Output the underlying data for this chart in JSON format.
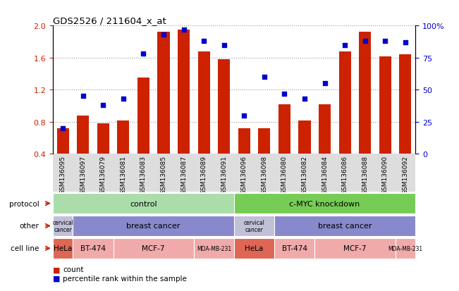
{
  "title": "GDS2526 / 211604_x_at",
  "samples": [
    "GSM136095",
    "GSM136097",
    "GSM136079",
    "GSM136081",
    "GSM136083",
    "GSM136085",
    "GSM136087",
    "GSM136089",
    "GSM136091",
    "GSM136096",
    "GSM136098",
    "GSM136080",
    "GSM136082",
    "GSM136084",
    "GSM136086",
    "GSM136088",
    "GSM136090",
    "GSM136092"
  ],
  "bar_values": [
    0.72,
    0.88,
    0.78,
    0.82,
    1.35,
    1.92,
    1.95,
    1.68,
    1.58,
    0.72,
    0.72,
    1.02,
    0.82,
    1.02,
    1.68,
    1.92,
    1.62,
    1.64
  ],
  "dot_values": [
    20,
    45,
    38,
    43,
    78,
    93,
    97,
    88,
    85,
    30,
    60,
    47,
    43,
    55,
    85,
    88,
    88,
    87
  ],
  "bar_color": "#cc2200",
  "dot_color": "#0000cc",
  "ylim_left": [
    0.4,
    2.0
  ],
  "ylim_right": [
    0,
    100
  ],
  "yticks_left": [
    0.4,
    0.8,
    1.2,
    1.6,
    2.0
  ],
  "yticks_right": [
    0,
    25,
    50,
    75,
    100
  ],
  "ytick_labels_right": [
    "0",
    "25",
    "50",
    "75",
    "100%"
  ],
  "protocol_control_color": "#aaddaa",
  "protocol_knockdown_color": "#77cc55",
  "protocol_control_label": "control",
  "protocol_knockdown_label": "c-MYC knockdown",
  "other_cervical_color": "#c0c0d8",
  "other_breast_color": "#8888cc",
  "other_cervical_label": "cervical\ncancer",
  "other_breast_label": "breast cancer",
  "cell_HeLa_color": "#dd6655",
  "cell_light_color": "#f0aaaa",
  "cell_HeLa_label": "HeLa",
  "cell_BT474_label": "BT-474",
  "cell_MCF7_label": "MCF-7",
  "cell_MDA_label": "MDA-MB-231",
  "row_labels": [
    "protocol",
    "other",
    "cell line"
  ],
  "legend_count": "count",
  "legend_pct": "percentile rank within the sample",
  "tick_color_left": "#cc2200",
  "tick_color_right": "#0000cc",
  "xtick_bg": "#dddddd"
}
